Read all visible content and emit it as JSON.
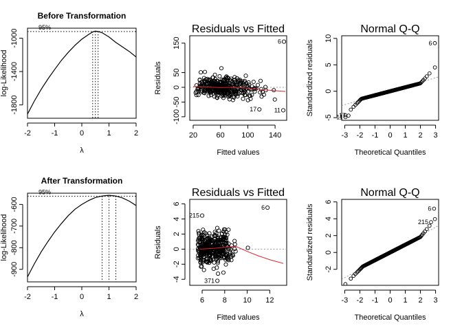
{
  "chart_data": [
    {
      "id": "boxcox_before",
      "type": "line",
      "title": "Before Transformation",
      "xlabel": "λ",
      "ylabel": "log-Likelihood",
      "xlim": [
        -2,
        2
      ],
      "ylim": [
        -1960,
        -880
      ],
      "xticks": [
        -2,
        -1,
        0,
        1,
        2
      ],
      "yticks": [
        -1800,
        -1400,
        -1000
      ],
      "ci_label": "95%",
      "lambda_hat": 0.5,
      "ci": [
        0.4,
        0.6
      ],
      "ci_level": -920,
      "curve": {
        "x": [
          -2,
          -1.75,
          -1.5,
          -1.25,
          -1,
          -0.75,
          -0.5,
          -0.25,
          0,
          0.25,
          0.4,
          0.5,
          0.6,
          0.75,
          1,
          1.25,
          1.5,
          1.75,
          2
        ],
        "y": [
          -1910,
          -1755,
          -1615,
          -1490,
          -1375,
          -1265,
          -1170,
          -1085,
          -1012,
          -955,
          -925,
          -915,
          -920,
          -935,
          -985,
          -1050,
          -1105,
          -1160,
          -1225
        ]
      }
    },
    {
      "id": "rvf_before",
      "type": "scatter",
      "title": "Residuals vs Fitted",
      "xlabel": "Fitted values",
      "ylabel": "Residuals",
      "xlim": [
        15,
        157
      ],
      "ylim": [
        -112,
        175
      ],
      "xticks": [
        20,
        60,
        100,
        140
      ],
      "yticks": [
        -100,
        -50,
        0,
        50,
        150
      ],
      "outliers": [
        {
          "x": 153,
          "y": 155,
          "label": "6"
        },
        {
          "x": 117,
          "y": -75,
          "label": "17"
        },
        {
          "x": 152,
          "y": -78,
          "label": "11"
        }
      ],
      "smooth": {
        "x": [
          20,
          40,
          60,
          80,
          100,
          120,
          155
        ],
        "y": [
          3,
          1,
          -1,
          0,
          -3,
          -8,
          -14
        ]
      }
    },
    {
      "id": "qq_before",
      "type": "scatter",
      "title": "Normal Q-Q",
      "xlabel": "Theoretical Quantiles",
      "ylabel": "Standardized residuals",
      "xlim": [
        -3.2,
        3.2
      ],
      "ylim": [
        -5.5,
        10.5
      ],
      "xticks": [
        -3,
        -2,
        -1,
        0,
        1,
        2,
        3
      ],
      "yticks": [
        -5,
        0,
        5,
        10
      ],
      "outliers": [
        {
          "x": 2.95,
          "y": 9.1,
          "label": "6"
        },
        {
          "x": -2.75,
          "y": -4.6,
          "label": "17"
        },
        {
          "x": -2.95,
          "y": -4.9,
          "label": "11"
        }
      ],
      "ref_line": {
        "slope": 0.85,
        "intercept": 0
      }
    },
    {
      "id": "boxcox_after",
      "type": "line",
      "title": "After Transformation",
      "xlabel": "λ",
      "ylabel": "log-Likelihood",
      "xlim": [
        -2,
        2
      ],
      "ylim": [
        -958,
        -548
      ],
      "xticks": [
        -2,
        -1,
        0,
        1,
        2
      ],
      "yticks": [
        -900,
        -800,
        -700,
        -600
      ],
      "ci_label": "95%",
      "lambda_hat": 1.0,
      "ci": [
        0.75,
        1.25
      ],
      "ci_level": -562,
      "curve": {
        "x": [
          -2,
          -1.75,
          -1.5,
          -1.25,
          -1,
          -0.75,
          -0.5,
          -0.25,
          0,
          0.25,
          0.5,
          0.75,
          1,
          1.25,
          1.5,
          1.75,
          2
        ],
        "y": [
          -935,
          -875,
          -820,
          -772,
          -727,
          -688,
          -652,
          -622,
          -600,
          -582,
          -568,
          -561,
          -558,
          -561,
          -570,
          -585,
          -605
        ]
      }
    },
    {
      "id": "rvf_after",
      "type": "scatter",
      "title": "Residuals vs Fitted",
      "xlabel": "Fitted values",
      "ylabel": "Residuals",
      "xlim": [
        4.9,
        13.5
      ],
      "ylim": [
        -4.8,
        6.6
      ],
      "xticks": [
        6,
        8,
        10,
        12
      ],
      "yticks": [
        -4,
        -2,
        0,
        2,
        4,
        6
      ],
      "outliers": [
        {
          "x": 11.8,
          "y": 5.5,
          "label": "6"
        },
        {
          "x": 6.0,
          "y": 4.45,
          "label": "215"
        },
        {
          "x": 7.35,
          "y": -4.2,
          "label": "371"
        }
      ],
      "smooth": {
        "x": [
          5.8,
          7,
          8,
          9,
          10,
          11,
          12,
          13.2
        ],
        "y": [
          0,
          0.1,
          0.25,
          0.35,
          -0.3,
          -0.9,
          -1.4,
          -1.9
        ]
      }
    },
    {
      "id": "qq_after",
      "type": "scatter",
      "title": "Normal Q-Q",
      "xlabel": "Theoretical Quantiles",
      "ylabel": "Standardized residuals",
      "xlim": [
        -3.2,
        3.2
      ],
      "ylim": [
        -3.9,
        6.3
      ],
      "xticks": [
        -3,
        -2,
        -1,
        0,
        1,
        2,
        3
      ],
      "yticks": [
        -2,
        0,
        2,
        4,
        6
      ],
      "outliers": [
        {
          "x": 2.9,
          "y": 5.2,
          "label": "6"
        },
        {
          "x": 2.7,
          "y": 3.6,
          "label": "215"
        }
      ],
      "ref_line": {
        "slope": 1.0,
        "intercept": 0
      }
    }
  ]
}
